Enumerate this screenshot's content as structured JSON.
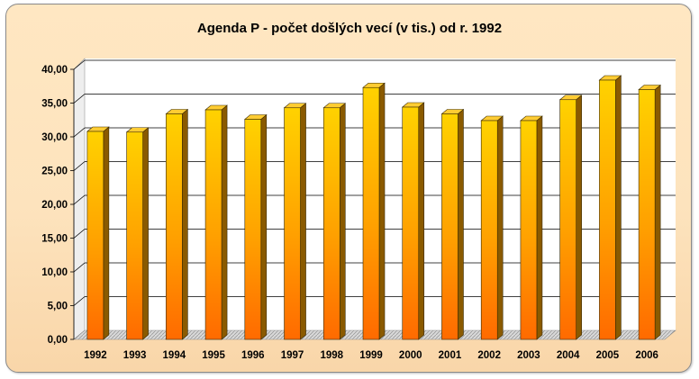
{
  "chart_data": {
    "type": "bar",
    "title": "Agenda P - počet došlých vecí (v tis.) od r. 1992",
    "categories": [
      "1992",
      "1993",
      "1994",
      "1995",
      "1996",
      "1997",
      "1998",
      "1999",
      "2000",
      "2001",
      "2002",
      "2003",
      "2004",
      "2005",
      "2006"
    ],
    "values": [
      30.8,
      30.7,
      33.4,
      34.0,
      32.6,
      34.3,
      34.3,
      37.3,
      34.4,
      33.4,
      32.4,
      32.4,
      35.5,
      38.4,
      37.0
    ],
    "ylim": [
      0,
      40
    ],
    "ytick_labels": [
      "0,00",
      "5,00",
      "10,00",
      "15,00",
      "20,00",
      "25,00",
      "30,00",
      "35,00",
      "40,00"
    ],
    "xlabel": "",
    "ylabel": "",
    "grid": true,
    "legend": "none",
    "colors": {
      "bar_top": "#ffd200",
      "bar_bottom": "#ff6a00",
      "bar_side": "#8a5a00",
      "bar_cap": "#ffcc33",
      "plot_back": "#ffffff",
      "floor": "#c8c8c8",
      "grid": "#000000"
    }
  }
}
